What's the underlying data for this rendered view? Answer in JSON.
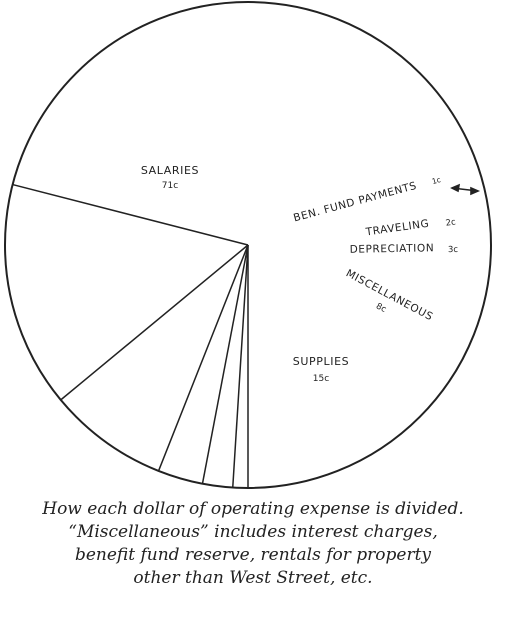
{
  "chart_data": {
    "type": "pie",
    "slices": [
      {
        "label": "SALARIES",
        "value_label": "71c",
        "value": 71
      },
      {
        "label": "SUPPLIES",
        "value_label": "15c",
        "value": 15
      },
      {
        "label": "MISCELLANEOUS",
        "value_label": "8c",
        "value": 8
      },
      {
        "label": "DEPRECIATION",
        "value_label": "3c",
        "value": 3
      },
      {
        "label": "TRAVELING",
        "value_label": "2c",
        "value": 2
      },
      {
        "label": "BEN. FUND PAYMENTS",
        "value_label": "1c",
        "value": 1
      }
    ],
    "colors": {
      "stroke": "#222222",
      "fill": "#ffffff"
    }
  },
  "caption": {
    "lines": [
      "How each dollar of operating expense is divided.",
      "“Miscellaneous” includes interest charges,",
      "benefit fund reserve, rentals for property",
      "other than West Street, etc."
    ]
  }
}
